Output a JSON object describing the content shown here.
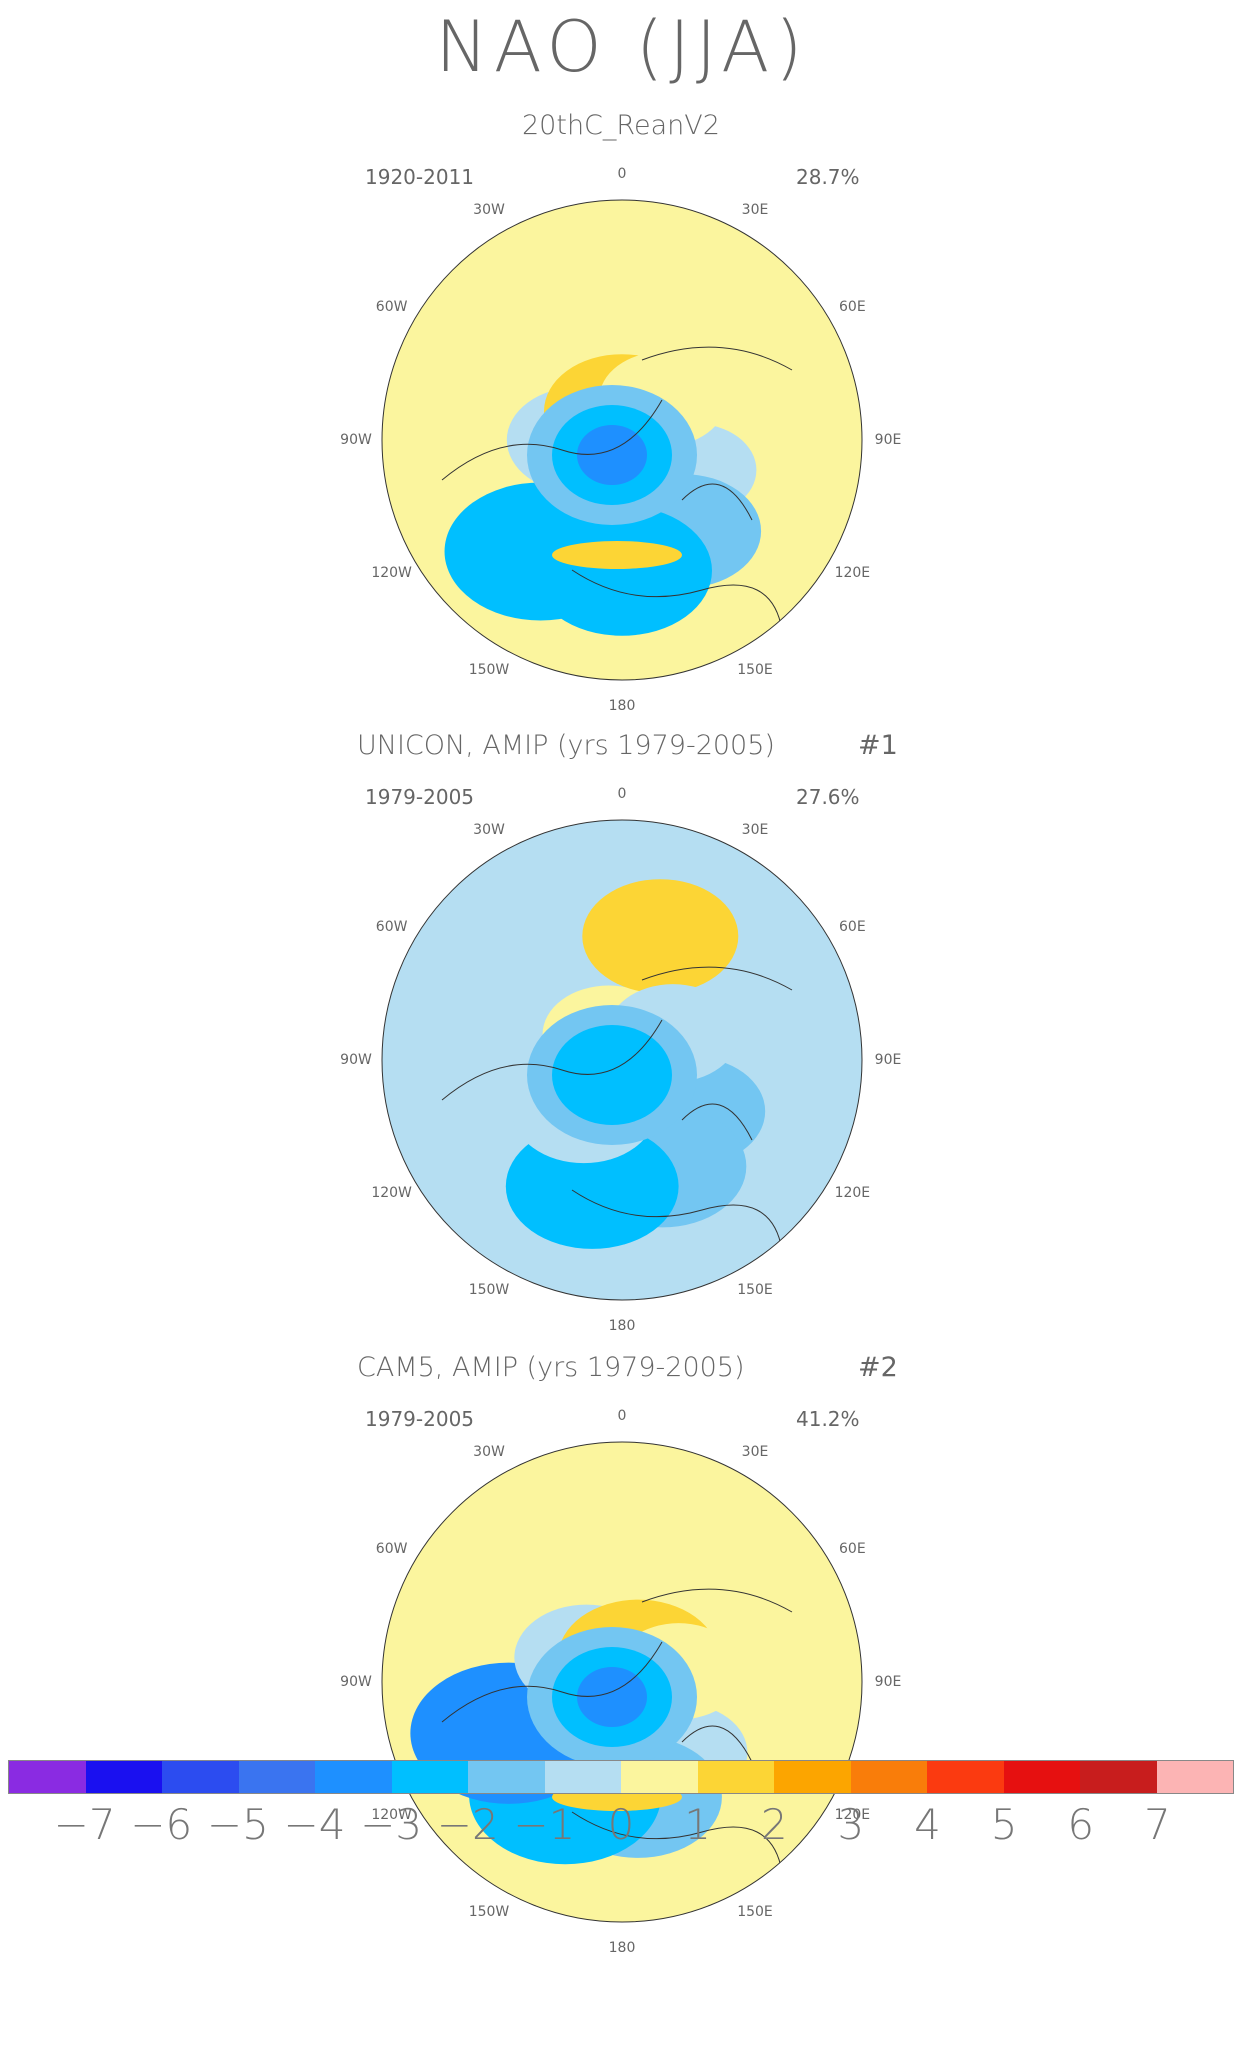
{
  "title": "NAO (JJA)",
  "panels": [
    {
      "title": "20thC_ReanV2",
      "number": "",
      "years": "1920-2011",
      "percent": "28.7%",
      "pattern": [
        [
          -0.2,
          0.5
        ],
        [
          -1.5,
          0.6
        ],
        [
          -2.5,
          0.7
        ],
        [
          -3.0,
          0.8
        ],
        [
          -1.0,
          0.3
        ],
        [
          0.5,
          0.1
        ],
        [
          1.5,
          0.2
        ],
        [
          0.3,
          0.4
        ]
      ]
    },
    {
      "title": "UNICON, AMIP (yrs 1979-2005)",
      "number": "#1",
      "years": "1979-2005",
      "percent": "27.6%",
      "pattern": [
        [
          -1.2,
          0.5
        ],
        [
          -2.0,
          0.6
        ],
        [
          -2.2,
          0.7
        ],
        [
          -1.0,
          0.3
        ],
        [
          -0.8,
          0.1
        ],
        [
          0.5,
          0.2
        ],
        [
          1.5,
          0.9
        ],
        [
          -0.5,
          0.4
        ]
      ]
    },
    {
      "title": "CAM5, AMIP (yrs 1979-2005)",
      "number": "#2",
      "years": "1979-2005",
      "percent": "41.2%",
      "pattern": [
        [
          -0.5,
          0.5
        ],
        [
          -2.0,
          0.6
        ],
        [
          -3.0,
          0.7
        ],
        [
          -3.2,
          0.8
        ],
        [
          -1.0,
          0.3
        ],
        [
          0.6,
          0.1
        ],
        [
          1.7,
          0.2
        ],
        [
          0.4,
          0.4
        ]
      ]
    }
  ],
  "longitude_labels": [
    "180",
    "150E",
    "120E",
    "90E",
    "60E",
    "30E",
    "0",
    "30W",
    "60W",
    "90W",
    "120W",
    "150W"
  ],
  "colorbar": {
    "colors": [
      "#8a2be2",
      "#1a10f0",
      "#2c4cf0",
      "#3a74f0",
      "#1e90ff",
      "#00bfff",
      "#73c6f2",
      "#b5def2",
      "#fbf59e",
      "#fcd535",
      "#fca500",
      "#f97d0a",
      "#fb3a10",
      "#e61010",
      "#c81d1d",
      "#fcb4b4"
    ],
    "labels": [
      "-7",
      "-6",
      "-5",
      "-4",
      "-3",
      "-2",
      "-1",
      "0",
      "1",
      "2",
      "3",
      "4",
      "5",
      "6",
      "7"
    ]
  }
}
